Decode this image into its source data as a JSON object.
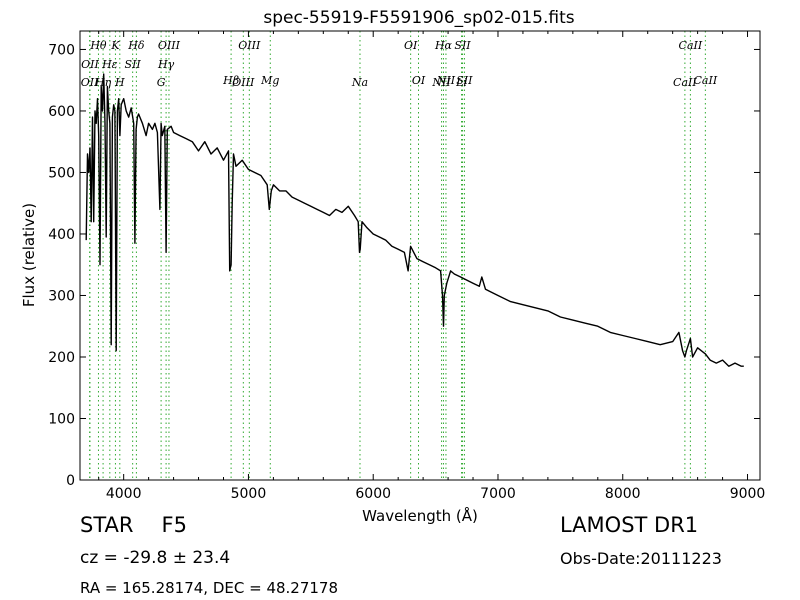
{
  "chart_data": {
    "type": "line",
    "title": "spec-55919-F5591906_sp02-015.fits",
    "xlabel": "Wavelength (Å)",
    "ylabel": "Flux (relative)",
    "xlim": [
      3650,
      9100
    ],
    "ylim": [
      0,
      730
    ],
    "xticks": [
      4000,
      5000,
      6000,
      7000,
      8000,
      9000
    ],
    "yticks": [
      0,
      100,
      200,
      300,
      400,
      500,
      600,
      700
    ],
    "grid": false,
    "legend": "none",
    "line_color": "#000000",
    "marker_color": "#33aa33",
    "series": [
      {
        "x": [
          3700,
          3710,
          3720,
          3730,
          3740,
          3750,
          3760,
          3770,
          3780,
          3790,
          3800,
          3810,
          3820,
          3830,
          3840,
          3850,
          3860,
          3870,
          3880,
          3890,
          3900,
          3910,
          3920,
          3930,
          3940,
          3950,
          3960,
          3970,
          3980,
          3990,
          4000,
          4020,
          4040,
          4060,
          4080,
          4090,
          4100,
          4110,
          4120,
          4150,
          4180,
          4200,
          4230,
          4250,
          4270,
          4290,
          4300,
          4310,
          4330,
          4340,
          4350,
          4380,
          4400,
          4450,
          4500,
          4550,
          4600,
          4650,
          4700,
          4750,
          4800,
          4840,
          4850,
          4861,
          4870,
          4880,
          4900,
          4950,
          5000,
          5050,
          5100,
          5150,
          5167,
          5175,
          5183,
          5200,
          5250,
          5300,
          5350,
          5400,
          5450,
          5500,
          5550,
          5600,
          5650,
          5700,
          5750,
          5800,
          5850,
          5880,
          5890,
          5896,
          5910,
          5950,
          6000,
          6050,
          6100,
          6150,
          6200,
          6250,
          6280,
          6300,
          6350,
          6400,
          6450,
          6500,
          6540,
          6555,
          6563,
          6570,
          6590,
          6620,
          6650,
          6700,
          6750,
          6800,
          6850,
          6870,
          6900,
          6950,
          7000,
          7100,
          7200,
          7300,
          7400,
          7500,
          7600,
          7700,
          7800,
          7900,
          8000,
          8100,
          8200,
          8300,
          8400,
          8450,
          8480,
          8498,
          8510,
          8542,
          8560,
          8600,
          8662,
          8700,
          8750,
          8800,
          8850,
          8900,
          8950,
          8970
        ],
        "y": [
          390,
          530,
          500,
          540,
          420,
          590,
          420,
          600,
          580,
          620,
          560,
          350,
          640,
          600,
          660,
          580,
          395,
          640,
          600,
          580,
          220,
          590,
          610,
          600,
          210,
          600,
          620,
          560,
          610,
          615,
          620,
          600,
          590,
          605,
          580,
          385,
          570,
          590,
          595,
          580,
          560,
          580,
          570,
          580,
          565,
          440,
          580,
          560,
          575,
          370,
          570,
          575,
          565,
          560,
          555,
          550,
          535,
          550,
          530,
          540,
          520,
          535,
          340,
          350,
          450,
          530,
          510,
          520,
          505,
          500,
          495,
          480,
          440,
          455,
          470,
          480,
          470,
          470,
          460,
          455,
          450,
          445,
          440,
          435,
          430,
          440,
          435,
          445,
          430,
          420,
          370,
          375,
          420,
          410,
          400,
          395,
          390,
          380,
          375,
          370,
          340,
          380,
          360,
          355,
          350,
          345,
          340,
          300,
          250,
          300,
          320,
          340,
          335,
          330,
          325,
          320,
          315,
          330,
          310,
          305,
          300,
          290,
          285,
          280,
          275,
          265,
          260,
          255,
          250,
          240,
          235,
          230,
          225,
          220,
          225,
          240,
          210,
          200,
          210,
          230,
          200,
          215,
          205,
          195,
          190,
          195,
          185,
          190,
          185,
          185
        ]
      }
    ],
    "lines": [
      {
        "label": "OII",
        "x": 3727,
        "row": 2
      },
      {
        "label": "OII",
        "x": 3730,
        "row": 1
      },
      {
        "label": "Hθ",
        "x": 3798,
        "row": 0
      },
      {
        "label": "Hη",
        "x": 3835,
        "row": 2
      },
      {
        "label": "Hε",
        "x": 3889,
        "row": 1
      },
      {
        "label": "K",
        "x": 3934,
        "row": 0
      },
      {
        "label": "H",
        "x": 3969,
        "row": 2
      },
      {
        "label": "Hδ",
        "x": 4102,
        "row": 0
      },
      {
        "label": "SII",
        "x": 4072,
        "row": 1
      },
      {
        "label": "G",
        "x": 4300,
        "row": 2
      },
      {
        "label": "Hγ",
        "x": 4340,
        "row": 1
      },
      {
        "label": "OIII",
        "x": 4363,
        "row": 0
      },
      {
        "label": "Hβ",
        "x": 4861,
        "row": 3
      },
      {
        "label": "OIII",
        "x": 4959,
        "row": 2
      },
      {
        "label": "OIII",
        "x": 5007,
        "row": 0
      },
      {
        "label": "Mg",
        "x": 5175,
        "row": 3
      },
      {
        "label": "Na",
        "x": 5894,
        "row": 2
      },
      {
        "label": "OI",
        "x": 6300,
        "row": 0
      },
      {
        "label": "OI",
        "x": 6363,
        "row": 3
      },
      {
        "label": "NII",
        "x": 6548,
        "row": 2
      },
      {
        "label": "Hα",
        "x": 6563,
        "row": 0
      },
      {
        "label": "NII",
        "x": 6583,
        "row": 3
      },
      {
        "label": "SII",
        "x": 6716,
        "row": 0
      },
      {
        "label": "Li",
        "x": 6708,
        "row": 2
      },
      {
        "label": "SII",
        "x": 6731,
        "row": 3
      },
      {
        "label": "CaII",
        "x": 8498,
        "row": 2
      },
      {
        "label": "CaII",
        "x": 8542,
        "row": 0
      },
      {
        "label": "CaII",
        "x": 8662,
        "row": 3
      }
    ]
  },
  "info": {
    "object_class": "STAR",
    "subclass": "F5",
    "redshift": "cz = -29.8 ± 23.4",
    "coords": "RA = 165.28174, DEC = 48.27178",
    "survey": "LAMOST DR1",
    "obs_date": "Obs-Date:20111223"
  }
}
